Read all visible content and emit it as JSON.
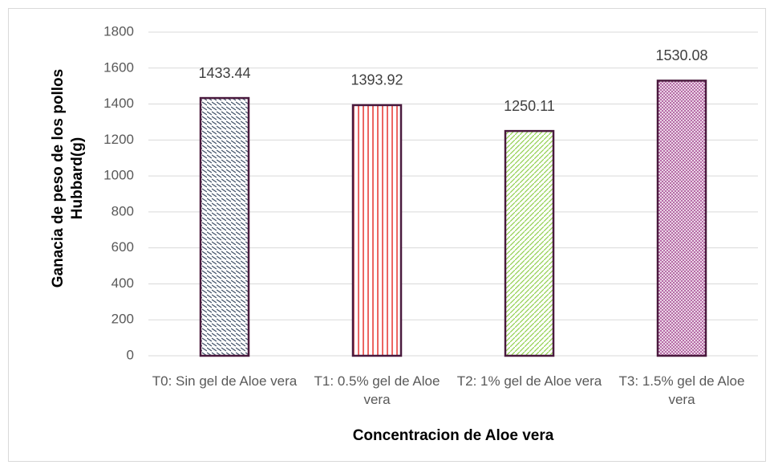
{
  "chart_data": {
    "type": "bar",
    "xlabel": "Concentracion de Aloe vera",
    "ylabel": "Ganacia de peso de los pollos Hubbard(g)",
    "categories": [
      "T0: Sin gel de Aloe vera",
      "T1: 0.5% gel de Aloe vera",
      "T2: 1% gel de Aloe vera",
      "T3: 1.5% gel de Aloe vera"
    ],
    "values": [
      1433.44,
      1393.92,
      1250.11,
      1530.08
    ],
    "colors": [
      "#44546a",
      "#e8403a",
      "#92d050",
      "#b060a0"
    ],
    "edgecolor": "#4a1a3e",
    "ylim": [
      0,
      1800
    ],
    "yticks": [
      0,
      200,
      400,
      600,
      800,
      1000,
      1200,
      1400,
      1600,
      1800
    ],
    "grid": true
  }
}
